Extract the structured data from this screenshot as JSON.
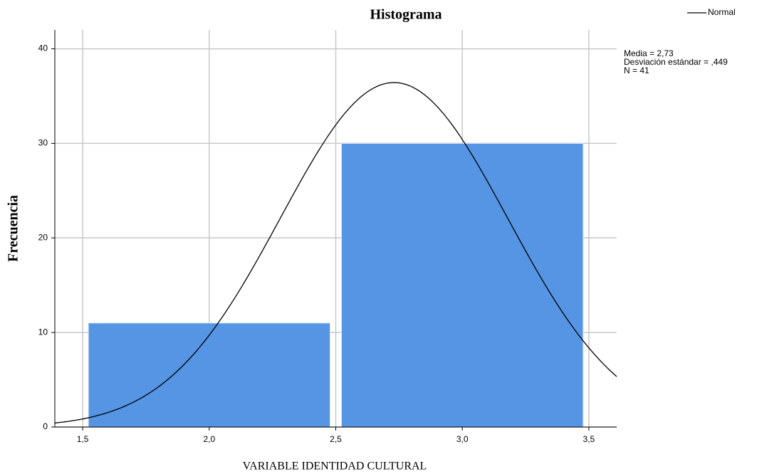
{
  "chart_data": {
    "type": "histogram",
    "title": "Histograma",
    "x_label": "VARIABLE IDENTIDAD CULTURAL",
    "y_label": "Frecuencia",
    "bins": [
      1.5,
      2.5,
      3.5
    ],
    "values": [
      11,
      30
    ],
    "color": "#5694e4",
    "xlim": [
      1.39,
      3.61
    ],
    "xticks": [
      {
        "value": 1.5,
        "label": "1,5"
      },
      {
        "value": 2.0,
        "label": "2,0"
      },
      {
        "value": 2.5,
        "label": "2,5"
      },
      {
        "value": 3.0,
        "label": "3,0"
      },
      {
        "value": 3.5,
        "label": "3,5"
      }
    ],
    "ylim": [
      0,
      42
    ],
    "yticks": [
      0,
      10,
      20,
      30,
      40
    ],
    "grid": true,
    "normal": {
      "name": "Normal",
      "color": "#000000",
      "mean": 2.73,
      "sd": 0.449,
      "n": 41
    },
    "stats": [
      "Media = 2,73",
      "Desviación estándar = ,449",
      "N = 41"
    ],
    "legend": "top-right"
  }
}
